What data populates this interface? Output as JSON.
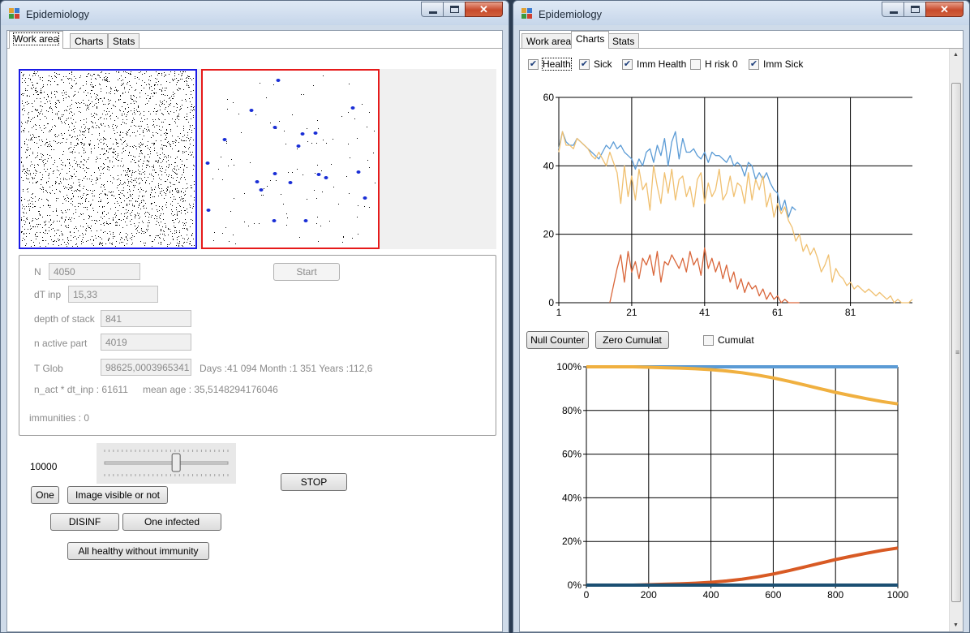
{
  "app": {
    "title": "Epidemiology"
  },
  "colors": {
    "all_pane_border": "#1a1ae6",
    "sick_pane_border": "#e61a1a",
    "health": "#5b9bd5",
    "sick": "#f0c070",
    "imm_sick": "#d9663a",
    "dark_line": "#1b4f72"
  },
  "tabs": [
    "Work area",
    "Charts",
    "Stats"
  ],
  "work_area": {
    "n_label": "N",
    "n_value": "4050",
    "start_button": "Start",
    "dt_label": "dT inp",
    "dt_value": "15,33",
    "depth_label": "depth of stack",
    "depth_value": "841",
    "active_label": "n active part",
    "active_value": "4019",
    "tglob_label": "T Glob",
    "tglob_value": "98625,0003965341",
    "tglob_info": "Days :41 094 Month :1 351 Years :112,6",
    "nact_info": "n_act * dt_inp : 61611",
    "mean_age": "mean age : 35,5148294176046",
    "immunities": "immunities : 0",
    "slider_value_label": "10000",
    "slider_level": 0.58,
    "stop_button": "STOP",
    "one_button": "One",
    "image_visible_button": "Image visible or not",
    "disinf_button": "DISINF",
    "one_infected_button": "One infected",
    "all_healthy_button": "All healthy without immunity"
  },
  "charts_tab": {
    "checkboxes": [
      {
        "label": "Health",
        "checked": true
      },
      {
        "label": "Sick",
        "checked": true
      },
      {
        "label": "Imm Health",
        "checked": true
      },
      {
        "label": "H risk 0",
        "checked": false
      },
      {
        "label": "Imm Sick",
        "checked": true
      }
    ],
    "null_counter_button": "Null Counter",
    "zero_cumulat_button": "Zero Cumulat",
    "cumulat_checkbox": "Cumulat",
    "cumulat_checked": false
  },
  "chart_data": [
    {
      "type": "line",
      "title": "",
      "xlabel": "",
      "ylabel": "",
      "xlim": [
        1,
        98
      ],
      "ylim": [
        0,
        60
      ],
      "x_ticks": [
        1,
        21,
        41,
        61,
        81
      ],
      "y_ticks": [
        0,
        20,
        40,
        60
      ],
      "grid": true,
      "series": [
        {
          "color": "#5b9bd5",
          "x": [
            1,
            2,
            3,
            4,
            5,
            6,
            7,
            8,
            9,
            10,
            11,
            12,
            13,
            14,
            15,
            16,
            17,
            18,
            19,
            20,
            21,
            22,
            23,
            24,
            25,
            26,
            27,
            28,
            29,
            30,
            31,
            32,
            33,
            34,
            35,
            36,
            37,
            38,
            39,
            40,
            41,
            42,
            43,
            44,
            45,
            46,
            47,
            48,
            49,
            50,
            51,
            52,
            53,
            54,
            55,
            56,
            57,
            58,
            59,
            60,
            61,
            62,
            63,
            64,
            65,
            66
          ],
          "values": [
            45,
            50,
            47,
            46,
            46,
            48,
            47,
            46,
            45,
            44,
            43,
            42,
            44,
            46,
            45,
            47,
            45,
            46,
            44,
            43,
            42,
            39,
            42,
            40,
            44,
            45,
            41,
            46,
            43,
            48,
            40,
            47,
            50,
            42,
            48,
            44,
            44,
            45,
            43,
            42,
            44,
            41,
            44,
            43,
            43,
            42,
            41,
            43,
            40,
            41,
            40,
            37,
            41,
            40,
            36,
            38,
            36,
            38,
            35,
            33,
            32,
            27,
            30,
            25,
            28,
            27
          ]
        },
        {
          "color": "#f0c070",
          "x": [
            1,
            2,
            3,
            4,
            5,
            6,
            7,
            8,
            9,
            10,
            11,
            12,
            13,
            14,
            15,
            16,
            17,
            18,
            19,
            20,
            21,
            22,
            23,
            24,
            25,
            26,
            27,
            28,
            29,
            30,
            31,
            32,
            33,
            34,
            35,
            36,
            37,
            38,
            39,
            40,
            41,
            42,
            43,
            44,
            45,
            46,
            47,
            48,
            49,
            50,
            51,
            52,
            53,
            54,
            55,
            56,
            57,
            58,
            59,
            60,
            61,
            62,
            63,
            64,
            65,
            66,
            67,
            68,
            69,
            70,
            71,
            72,
            73,
            74,
            75,
            76,
            77,
            78,
            79,
            80,
            81,
            82,
            83,
            84,
            85,
            86,
            87,
            88,
            89,
            90,
            91,
            92,
            93,
            94,
            95,
            96,
            97,
            98
          ],
          "values": [
            44,
            50,
            46,
            46,
            45,
            48,
            47,
            46,
            45,
            43,
            42,
            44,
            42,
            40,
            44,
            41,
            38,
            29,
            40,
            31,
            37,
            30,
            39,
            33,
            35,
            27,
            40,
            34,
            29,
            38,
            32,
            39,
            30,
            36,
            37,
            31,
            34,
            28,
            36,
            38,
            29,
            35,
            31,
            33,
            39,
            30,
            32,
            37,
            31,
            35,
            34,
            29,
            38,
            30,
            36,
            33,
            37,
            28,
            32,
            25,
            29,
            26,
            28,
            24,
            22,
            18,
            20,
            15,
            17,
            14,
            16,
            13,
            9,
            11,
            14,
            6,
            10,
            8,
            7,
            5,
            6,
            4,
            5,
            4,
            3,
            4,
            3,
            2,
            3,
            2,
            1,
            2,
            0,
            1,
            0,
            0,
            0,
            1
          ]
        },
        {
          "color": "#d9663a",
          "x": [
            15,
            16,
            17,
            18,
            19,
            20,
            21,
            22,
            23,
            24,
            25,
            26,
            27,
            28,
            29,
            30,
            31,
            32,
            33,
            34,
            35,
            36,
            37,
            38,
            39,
            40,
            41,
            42,
            43,
            44,
            45,
            46,
            47,
            48,
            49,
            50,
            51,
            52,
            53,
            54,
            55,
            56,
            57,
            58,
            59,
            60,
            61,
            62,
            63,
            64,
            65,
            66,
            67
          ],
          "values": [
            0,
            5,
            10,
            14,
            6,
            15,
            9,
            12,
            7,
            13,
            11,
            14,
            8,
            15,
            6,
            12,
            11,
            14,
            12,
            10,
            13,
            9,
            15,
            11,
            13,
            8,
            16,
            10,
            13,
            9,
            12,
            7,
            11,
            6,
            9,
            4,
            7,
            3,
            6,
            4,
            5,
            2,
            4,
            1,
            3,
            1,
            2,
            0,
            1,
            0,
            0,
            0,
            0
          ]
        }
      ]
    },
    {
      "type": "line",
      "title": "",
      "xlabel": "",
      "ylabel": "",
      "xlim": [
        0,
        1000
      ],
      "ylim": [
        0,
        100
      ],
      "x_ticks": [
        0,
        200,
        400,
        600,
        800,
        1000
      ],
      "y_ticks": [
        0,
        20,
        40,
        60,
        80,
        100
      ],
      "y_format": "percent",
      "grid": true,
      "series": [
        {
          "color": "#5b9bd5",
          "x": [
            0,
            1000
          ],
          "values": [
            100,
            100
          ]
        },
        {
          "color": "#f0b040",
          "x": [
            0,
            50,
            100,
            150,
            200,
            250,
            300,
            350,
            400,
            450,
            500,
            550,
            600,
            650,
            700,
            750,
            800,
            850,
            900,
            950,
            1000
          ],
          "values": [
            100,
            100,
            100,
            100,
            99.8,
            99.6,
            99.4,
            99.1,
            98.7,
            98.1,
            97.3,
            96.2,
            94.9,
            93.4,
            91.7,
            90.0,
            88.3,
            86.8,
            85.4,
            84.1,
            83
          ]
        },
        {
          "color": "#d85a24",
          "x": [
            0,
            50,
            100,
            150,
            200,
            250,
            300,
            350,
            400,
            450,
            500,
            550,
            600,
            650,
            700,
            750,
            800,
            850,
            900,
            950,
            1000
          ],
          "values": [
            0,
            0,
            0,
            0,
            0.2,
            0.4,
            0.6,
            0.9,
            1.3,
            1.9,
            2.7,
            3.8,
            5.1,
            6.6,
            8.3,
            10.0,
            11.7,
            13.2,
            14.6,
            15.9,
            17
          ]
        },
        {
          "color": "#1b4f72",
          "x": [
            0,
            1000
          ],
          "values": [
            0,
            0
          ]
        }
      ]
    }
  ]
}
